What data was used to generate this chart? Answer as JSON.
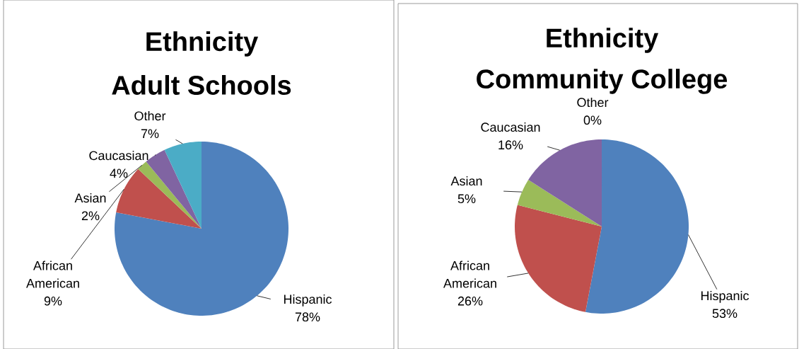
{
  "chart_data": [
    {
      "type": "pie",
      "title": "Ethnicity",
      "subtitle": "Adult Schools",
      "categories": [
        "Hispanic",
        "African American",
        "Asian",
        "Caucasian",
        "Other"
      ],
      "values": [
        78,
        9,
        2,
        4,
        7
      ],
      "colors": [
        "#4f81bd",
        "#c0504d",
        "#9bbb59",
        "#8064a2",
        "#4bacc6"
      ],
      "value_labels": [
        "78%",
        "9%",
        "2%",
        "4%",
        "7%"
      ]
    },
    {
      "type": "pie",
      "title": "Ethnicity",
      "subtitle": "Community College",
      "categories": [
        "Hispanic",
        "African American",
        "Asian",
        "Caucasian",
        "Other"
      ],
      "values": [
        53,
        26,
        5,
        16,
        0
      ],
      "colors": [
        "#4f81bd",
        "#c0504d",
        "#9bbb59",
        "#8064a2",
        "#4bacc6"
      ],
      "value_labels": [
        "53%",
        "26%",
        "5%",
        "16%",
        "0%"
      ]
    }
  ]
}
